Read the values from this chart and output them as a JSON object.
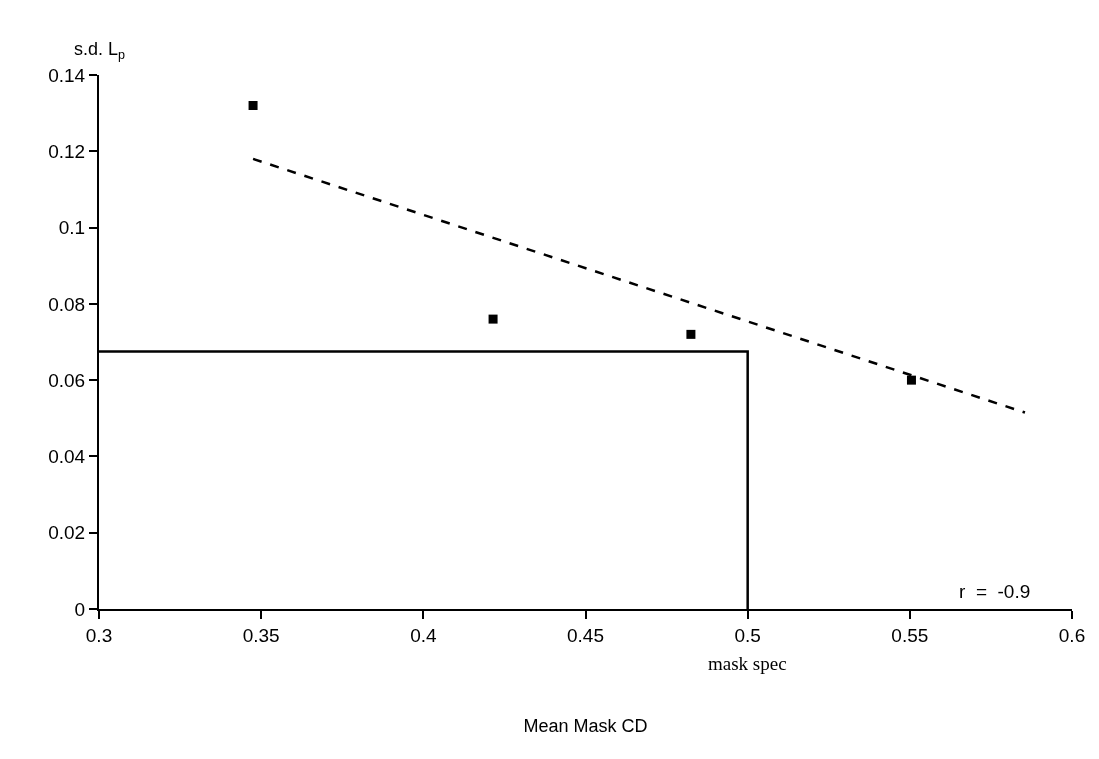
{
  "chart_data": {
    "type": "scatter",
    "xlabel": "Mean Mask CD",
    "ylabel": "s.d. L$_{p}$",
    "xlim": [
      0.3,
      0.6
    ],
    "xticks": [
      0.3,
      0.35,
      0.4,
      0.45,
      0.5,
      0.55,
      0.6
    ],
    "ylim": [
      0,
      0.14
    ],
    "yticks": [
      0,
      0.02,
      0.04,
      0.06,
      0.08,
      0.1,
      0.12,
      0.14
    ],
    "series": [
      {
        "color": "#000000",
        "marker": "square",
        "x": [
          0.3475,
          0.4215,
          0.4825,
          0.5505
        ],
        "values": [
          0.132,
          0.076,
          0.072,
          0.06
        ]
      },
      {
        "type": "line",
        "color": "#000000",
        "marker": "none",
        "line_style": "dashed",
        "x": [
          0.3475,
          0.5855
        ],
        "values": [
          0.118,
          0.0515
        ]
      },
      {
        "type": "line",
        "color": "#000000",
        "marker": "none",
        "line_style": "solid",
        "x": [
          0.3,
          0.5,
          0.5
        ],
        "values": [
          0.0675,
          0.0675,
          0
        ]
      }
    ],
    "annotations": [
      "r  =  -0.9",
      {
        "text": "mask spec",
        "x": 0.5,
        "y": 0
      }
    ]
  }
}
